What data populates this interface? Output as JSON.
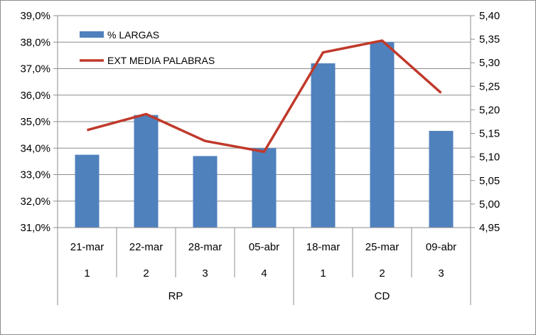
{
  "chart_data": {
    "type": "bar-line-combo",
    "categories": [
      "21-mar",
      "22-mar",
      "28-mar",
      "05-abr",
      "18-mar",
      "25-mar",
      "09-abr"
    ],
    "category_numbers": [
      "1",
      "2",
      "3",
      "4",
      "1",
      "2",
      "3"
    ],
    "groups": [
      {
        "label": "RP",
        "count": 4
      },
      {
        "label": "CD",
        "count": 3
      }
    ],
    "series": [
      {
        "name": "% LARGAS",
        "kind": "bar",
        "axis": "left",
        "color": "#4f81bd",
        "values": [
          33.75,
          35.25,
          33.7,
          34.0,
          37.2,
          38.0,
          34.65
        ]
      },
      {
        "name": "EXT MEDIA PALABRAS",
        "kind": "line",
        "axis": "right",
        "color": "#c0392b",
        "values": [
          5.157,
          5.191,
          5.134,
          5.111,
          5.322,
          5.347,
          5.236
        ]
      }
    ],
    "y_left": {
      "min": 31.0,
      "max": 39.0,
      "ticks": [
        "31,0%",
        "32,0%",
        "33,0%",
        "34,0%",
        "35,0%",
        "36,0%",
        "37,0%",
        "38,0%",
        "39,0%"
      ]
    },
    "y_right": {
      "min": 4.95,
      "max": 5.4,
      "ticks": [
        "4,95",
        "5,00",
        "5,05",
        "5,10",
        "5,15",
        "5,20",
        "5,25",
        "5,30",
        "5,35",
        "5,40"
      ]
    },
    "grid": "horizontal",
    "legend_position": "top-left"
  }
}
